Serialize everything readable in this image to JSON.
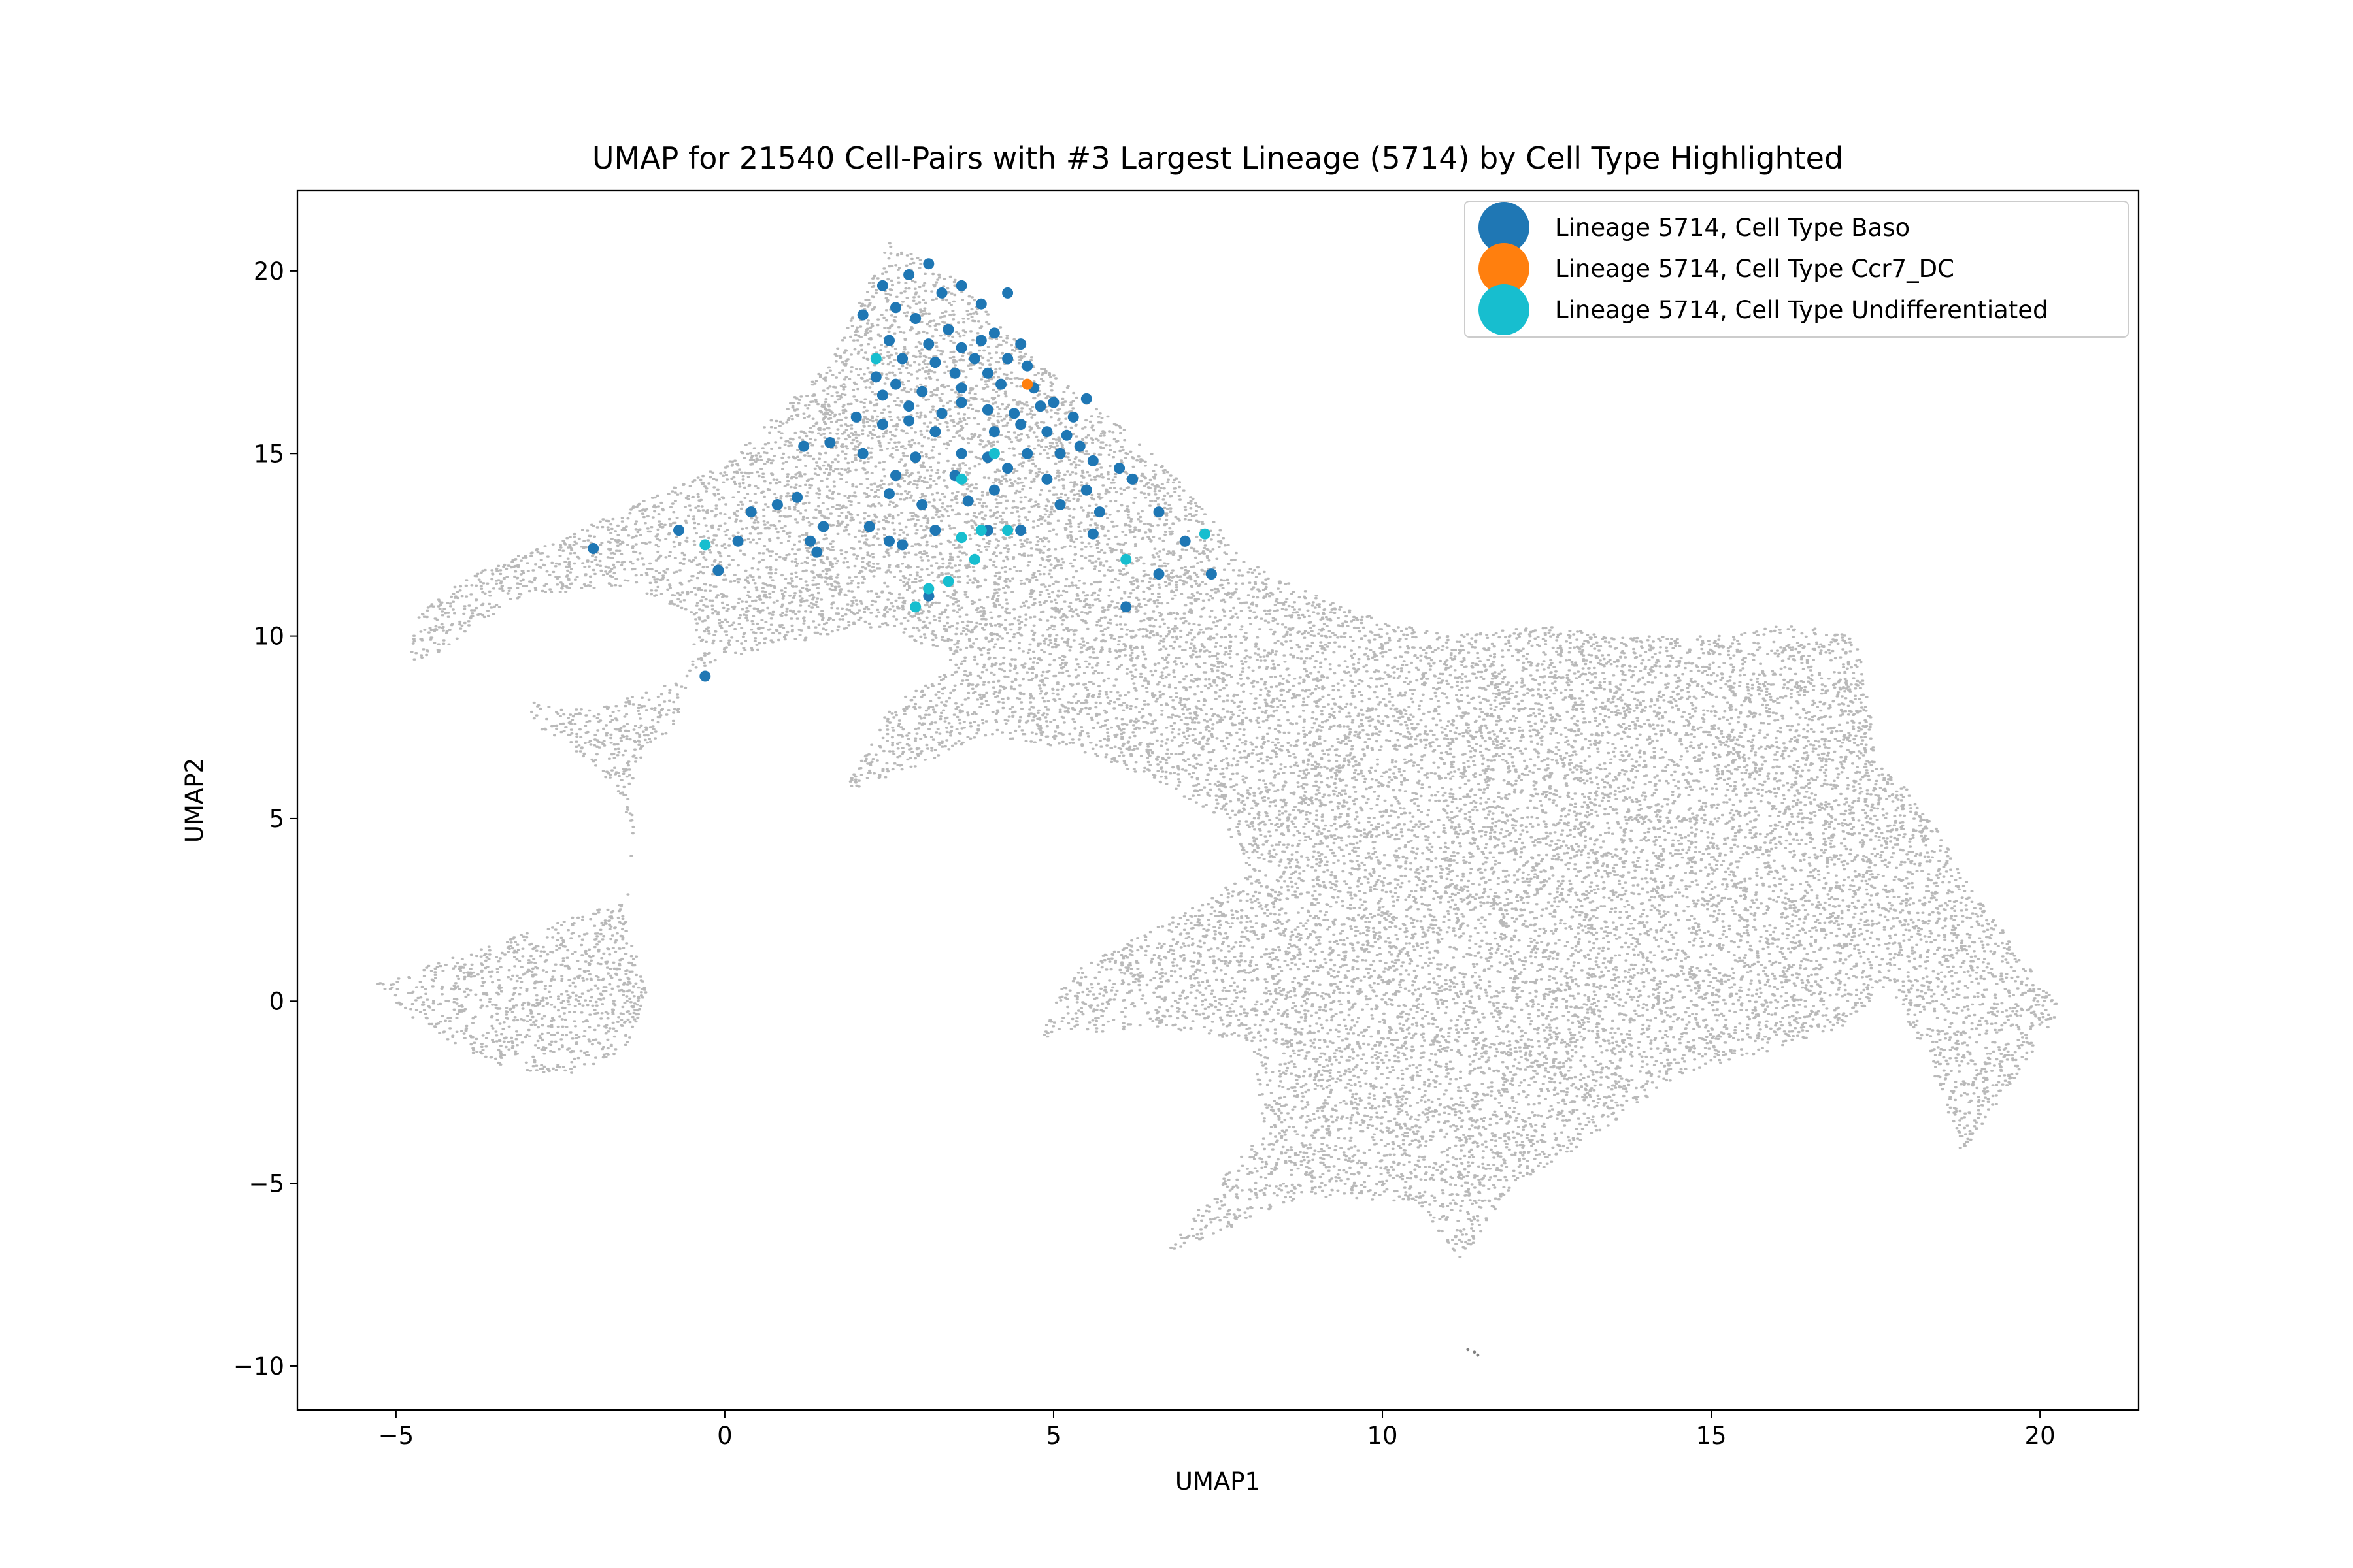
{
  "chart_data": {
    "type": "scatter",
    "title": "UMAP for 21540 Cell-Pairs with #3 Largest Lineage (5714) by Cell Type Highlighted",
    "xlabel": "UMAP1",
    "ylabel": "UMAP2",
    "xlim": [
      -6.5,
      21.5
    ],
    "ylim": [
      -11.2,
      22.2
    ],
    "x_ticks": [
      -5,
      0,
      5,
      10,
      15,
      20
    ],
    "x_tick_labels": [
      "−5",
      "0",
      "5",
      "10",
      "15",
      "20"
    ],
    "y_ticks": [
      -10,
      -5,
      0,
      5,
      10,
      15,
      20
    ],
    "y_tick_labels": [
      "−10",
      "−5",
      "0",
      "5",
      "10",
      "15",
      "20"
    ],
    "grid": false,
    "legend_position": "upper right",
    "background": {
      "color": "#808080",
      "point_count": 21540,
      "shape_outline": [
        [
          -5.3,
          0.5
        ],
        [
          -4.8,
          -0.4
        ],
        [
          -4.0,
          -1.3
        ],
        [
          -3.2,
          -1.9
        ],
        [
          -2.3,
          -2.0
        ],
        [
          -1.5,
          -1.3
        ],
        [
          -1.2,
          0.2
        ],
        [
          -1.5,
          2.2
        ],
        [
          -1.4,
          4.4
        ],
        [
          -1.6,
          5.6
        ],
        [
          -2.1,
          6.6
        ],
        [
          -2.9,
          7.5
        ],
        [
          -3.0,
          8.2
        ],
        [
          -2.0,
          8.0
        ],
        [
          -1.0,
          8.6
        ],
        [
          0.0,
          9.4
        ],
        [
          1.5,
          10.0
        ],
        [
          2.5,
          10.3
        ],
        [
          3.5,
          9.2
        ],
        [
          2.5,
          8.1
        ],
        [
          2.0,
          6.4
        ],
        [
          1.8,
          5.7
        ],
        [
          3.0,
          6.5
        ],
        [
          4.0,
          7.3
        ],
        [
          5.5,
          6.8
        ],
        [
          6.5,
          6.0
        ],
        [
          7.5,
          5.1
        ],
        [
          8.0,
          3.5
        ],
        [
          6.5,
          2.0
        ],
        [
          5.2,
          0.7
        ],
        [
          4.8,
          -1.0
        ],
        [
          6.5,
          -0.7
        ],
        [
          8.0,
          -1.1
        ],
        [
          8.2,
          -3.5
        ],
        [
          7.5,
          -5.0
        ],
        [
          6.7,
          -6.9
        ],
        [
          8.8,
          -5.4
        ],
        [
          10.5,
          -5.5
        ],
        [
          11.2,
          -7.1
        ],
        [
          12.0,
          -5.0
        ],
        [
          13.0,
          -4.0
        ],
        [
          14.5,
          -2.0
        ],
        [
          16.0,
          -1.3
        ],
        [
          17.0,
          -0.7
        ],
        [
          17.7,
          0.5
        ],
        [
          18.5,
          -2.5
        ],
        [
          18.8,
          -4.2
        ],
        [
          19.8,
          -1.6
        ],
        [
          20.3,
          -0.2
        ],
        [
          19.8,
          1.0
        ],
        [
          19.0,
          3.0
        ],
        [
          18.5,
          4.5
        ],
        [
          18.0,
          5.8
        ],
        [
          17.5,
          6.5
        ],
        [
          17.4,
          8.5
        ],
        [
          17.2,
          10.1
        ],
        [
          16.0,
          10.3
        ],
        [
          15.0,
          10.0
        ],
        [
          13.7,
          10.0
        ],
        [
          12.4,
          10.3
        ],
        [
          11.0,
          10.0
        ],
        [
          9.5,
          10.7
        ],
        [
          8.5,
          11.5
        ],
        [
          7.8,
          12.2
        ],
        [
          7.3,
          13.5
        ],
        [
          6.3,
          15.4
        ],
        [
          4.8,
          17.4
        ],
        [
          3.5,
          19.8
        ],
        [
          2.5,
          20.8
        ],
        [
          1.6,
          17.5
        ],
        [
          0.0,
          14.7
        ],
        [
          -1.5,
          13.5
        ],
        [
          -3.0,
          12.3
        ],
        [
          -4.0,
          11.6
        ],
        [
          -4.7,
          10.5
        ],
        [
          -4.8,
          9.2
        ],
        [
          -4.3,
          9.6
        ],
        [
          -3.2,
          11.0
        ],
        [
          -1.5,
          11.4
        ],
        [
          -0.5,
          10.6
        ],
        [
          -0.6,
          8.5
        ],
        [
          -0.8,
          7.4
        ],
        [
          -1.2,
          7.0
        ],
        [
          -1.4,
          6.2
        ],
        [
          -1.4,
          4.6
        ],
        [
          -1.5,
          2.8
        ]
      ]
    },
    "series": [
      {
        "name": "Lineage 5714, Cell Type Baso",
        "color": "#1f77b4",
        "points": [
          [
            2.4,
            19.6
          ],
          [
            2.8,
            19.9
          ],
          [
            3.1,
            20.2
          ],
          [
            3.3,
            19.4
          ],
          [
            2.6,
            19.0
          ],
          [
            2.1,
            18.8
          ],
          [
            3.6,
            19.6
          ],
          [
            3.9,
            19.1
          ],
          [
            4.3,
            19.4
          ],
          [
            2.9,
            18.7
          ],
          [
            3.4,
            18.4
          ],
          [
            3.1,
            18.0
          ],
          [
            3.6,
            17.9
          ],
          [
            3.9,
            18.1
          ],
          [
            4.1,
            18.3
          ],
          [
            4.5,
            18.0
          ],
          [
            2.5,
            18.1
          ],
          [
            2.7,
            17.6
          ],
          [
            3.2,
            17.5
          ],
          [
            3.5,
            17.2
          ],
          [
            3.8,
            17.6
          ],
          [
            4.0,
            17.2
          ],
          [
            4.3,
            17.6
          ],
          [
            4.6,
            17.4
          ],
          [
            2.3,
            17.1
          ],
          [
            2.6,
            16.9
          ],
          [
            3.0,
            16.7
          ],
          [
            3.6,
            16.8
          ],
          [
            4.2,
            16.9
          ],
          [
            4.7,
            16.8
          ],
          [
            5.0,
            16.4
          ],
          [
            2.4,
            16.6
          ],
          [
            2.8,
            16.3
          ],
          [
            3.3,
            16.1
          ],
          [
            3.6,
            16.4
          ],
          [
            4.0,
            16.2
          ],
          [
            4.4,
            16.1
          ],
          [
            4.8,
            16.3
          ],
          [
            5.3,
            16.0
          ],
          [
            5.5,
            16.5
          ],
          [
            2.0,
            16.0
          ],
          [
            2.4,
            15.8
          ],
          [
            2.8,
            15.9
          ],
          [
            3.2,
            15.6
          ],
          [
            4.1,
            15.6
          ],
          [
            4.5,
            15.8
          ],
          [
            4.9,
            15.6
          ],
          [
            5.2,
            15.5
          ],
          [
            5.4,
            15.2
          ],
          [
            1.6,
            15.3
          ],
          [
            2.1,
            15.0
          ],
          [
            2.9,
            14.9
          ],
          [
            3.6,
            15.0
          ],
          [
            4.0,
            14.9
          ],
          [
            4.6,
            15.0
          ],
          [
            5.1,
            15.0
          ],
          [
            5.6,
            14.8
          ],
          [
            6.0,
            14.6
          ],
          [
            6.2,
            14.3
          ],
          [
            1.2,
            15.2
          ],
          [
            2.6,
            14.4
          ],
          [
            3.5,
            14.4
          ],
          [
            4.3,
            14.6
          ],
          [
            4.9,
            14.3
          ],
          [
            5.5,
            14.0
          ],
          [
            0.4,
            13.4
          ],
          [
            0.8,
            13.6
          ],
          [
            1.1,
            13.8
          ],
          [
            2.5,
            13.9
          ],
          [
            3.0,
            13.6
          ],
          [
            3.7,
            13.7
          ],
          [
            4.1,
            14.0
          ],
          [
            5.1,
            13.6
          ],
          [
            5.7,
            13.4
          ],
          [
            6.6,
            13.4
          ],
          [
            -0.7,
            12.9
          ],
          [
            -2.0,
            12.4
          ],
          [
            1.5,
            13.0
          ],
          [
            2.2,
            13.0
          ],
          [
            2.5,
            12.6
          ],
          [
            3.2,
            12.9
          ],
          [
            4.0,
            12.9
          ],
          [
            4.5,
            12.9
          ],
          [
            5.6,
            12.8
          ],
          [
            7.0,
            12.6
          ],
          [
            0.2,
            12.6
          ],
          [
            1.3,
            12.6
          ],
          [
            2.7,
            12.5
          ],
          [
            -0.1,
            11.8
          ],
          [
            1.4,
            12.3
          ],
          [
            6.6,
            11.7
          ],
          [
            7.4,
            11.7
          ],
          [
            6.1,
            10.8
          ],
          [
            -0.3,
            8.9
          ],
          [
            3.1,
            11.1
          ]
        ]
      },
      {
        "name": "Lineage 5714, Cell Type Ccr7_DC",
        "color": "#ff7f0e",
        "points": [
          [
            4.6,
            16.9
          ]
        ]
      },
      {
        "name": "Lineage 5714, Cell Type Undifferentiated",
        "color": "#17becf",
        "points": [
          [
            2.3,
            17.6
          ],
          [
            4.1,
            15.0
          ],
          [
            3.6,
            14.3
          ],
          [
            3.6,
            12.7
          ],
          [
            3.9,
            12.9
          ],
          [
            4.3,
            12.9
          ],
          [
            3.8,
            12.1
          ],
          [
            3.4,
            11.5
          ],
          [
            3.1,
            11.3
          ],
          [
            2.9,
            10.8
          ],
          [
            -0.3,
            12.5
          ],
          [
            6.1,
            12.1
          ],
          [
            7.3,
            12.8
          ]
        ]
      }
    ]
  }
}
